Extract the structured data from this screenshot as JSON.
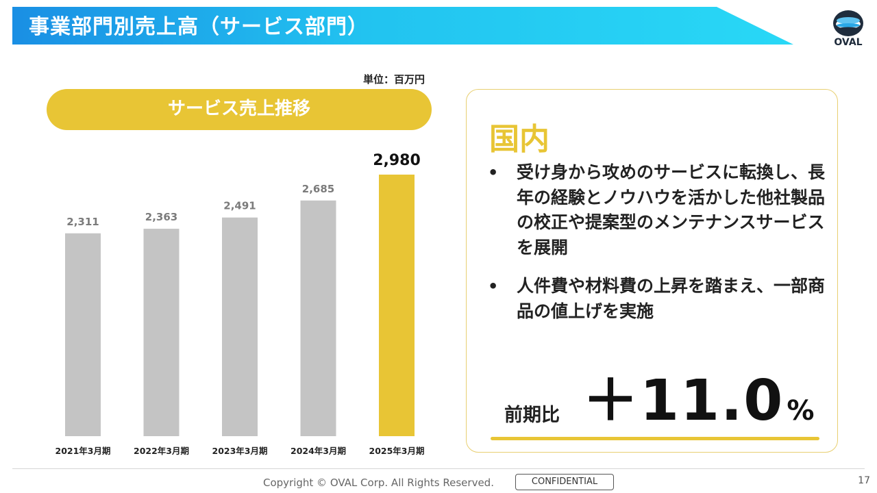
{
  "header": {
    "title": "事業部門別売上高（サービス部門）",
    "logo_text": "OVAL"
  },
  "unit_label": "単位：百万円",
  "chart_pill_label": "サービス売上推移",
  "chart_data": {
    "type": "bar",
    "categories": [
      "2021年3月期",
      "2022年3月期",
      "2023年3月期",
      "2024年3月期",
      "2025年3月期"
    ],
    "values": [
      2311,
      2363,
      2491,
      2685,
      2980
    ],
    "value_labels": [
      "2,311",
      "2,363",
      "2,491",
      "2,685",
      "2,980"
    ],
    "highlight_index": 4,
    "ylim": [
      0,
      3000
    ],
    "grid": false,
    "colors": {
      "normal": "#c4c4c4",
      "highlight": "#e8c535",
      "label": "#7b7b7b",
      "highlight_label": "#111111"
    }
  },
  "panel": {
    "heading": "国内",
    "bullets": [
      "受け身から攻めのサービスに転換し、長年の経験とノウハウを活かした他社製品の校正や提案型のメンテナンスサービスを展開",
      "人件費や材料費の上昇を踏まえ、一部商品の値上げを実施"
    ],
    "comparison_label": "前期比",
    "comparison_value": "＋11.0",
    "comparison_unit": "%"
  },
  "footer": {
    "copyright": "Copyright © OVAL Corp. All Rights Reserved.",
    "confidential": "CONFIDENTIAL",
    "page_number": "17"
  },
  "colors": {
    "accent": "#e8c535",
    "banner_start": "#1a8fe4",
    "banner_end": "#29d8f6"
  }
}
